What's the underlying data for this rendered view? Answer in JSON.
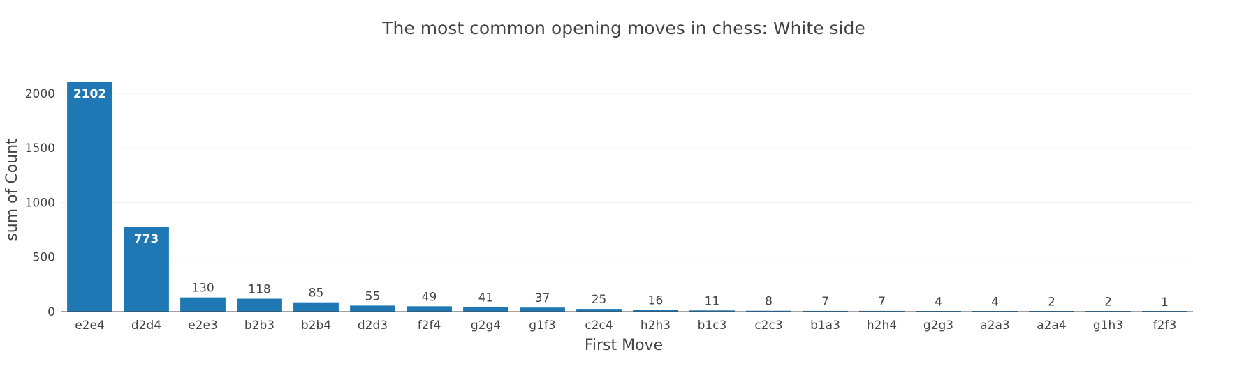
{
  "chart_data": {
    "type": "bar",
    "title": "The most common opening moves in chess: White side",
    "xlabel": "First Move",
    "ylabel": "sum of Count",
    "categories": [
      "e2e4",
      "d2d4",
      "e2e3",
      "b2b3",
      "b2b4",
      "d2d3",
      "f2f4",
      "g2g4",
      "g1f3",
      "c2c4",
      "h2h3",
      "b1c3",
      "c2c3",
      "b1a3",
      "h2h4",
      "g2g3",
      "a2a3",
      "a2a4",
      "g1h3",
      "f2f3"
    ],
    "values": [
      2102,
      773,
      130,
      118,
      85,
      55,
      49,
      41,
      37,
      25,
      16,
      11,
      8,
      7,
      7,
      4,
      4,
      2,
      2,
      1
    ],
    "ylim": [
      0,
      2102
    ],
    "yticks": [
      0,
      500,
      1000,
      1500,
      2000
    ],
    "grid": true,
    "colors": {
      "bar": "#1f77b4",
      "grid": "#eeeeee",
      "text": "#444444"
    }
  }
}
